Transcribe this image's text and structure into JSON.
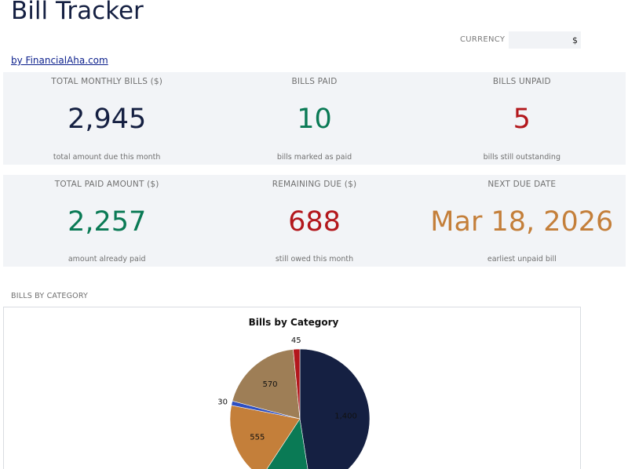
{
  "app": {
    "title": "Bill Tracker",
    "byline": "by FinancialAha.com"
  },
  "currency": {
    "label": "CURRENCY",
    "value": "$"
  },
  "cards": [
    {
      "label": "TOTAL MONTHLY BILLS ($)",
      "value": "2,945",
      "note": "total amount due this month",
      "color": "#152042"
    },
    {
      "label": "BILLS PAID",
      "value": "10",
      "note": "bills marked as paid",
      "color": "#0a7a55"
    },
    {
      "label": "BILLS UNPAID",
      "value": "5",
      "note": "bills still outstanding",
      "color": "#b3171c"
    },
    {
      "label": "TOTAL PAID AMOUNT ($)",
      "value": "2,257",
      "note": "amount already paid",
      "color": "#0a7a55"
    },
    {
      "label": "REMAINING DUE ($)",
      "value": "688",
      "note": "still owed this month",
      "color": "#b3171c"
    },
    {
      "label": "NEXT DUE DATE",
      "value": "Mar 18, 2026",
      "note": "earliest unpaid bill",
      "color": "#c47f3a"
    }
  ],
  "section": {
    "chart_heading": "BILLS BY CATEGORY"
  },
  "chart_data": {
    "type": "pie",
    "title": "Bills by Category",
    "values": [
      1400,
      345,
      555,
      30,
      570,
      45
    ],
    "labels": [
      "1,400",
      "",
      "555",
      "30",
      "570",
      "45"
    ],
    "colors": [
      "#152042",
      "#0a7a55",
      "#c47f3a",
      "#2e4fc2",
      "#9e7e56",
      "#b3171c"
    ]
  }
}
